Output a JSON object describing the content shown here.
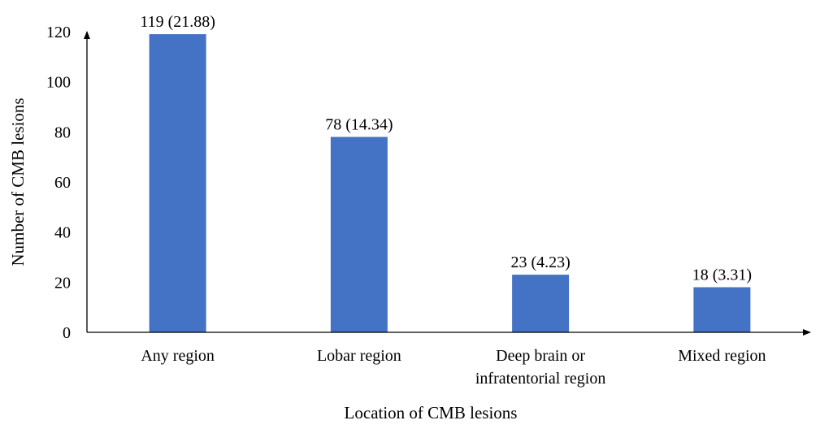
{
  "chart_data": {
    "type": "bar",
    "title": "",
    "xlabel": "Location of CMB lesions",
    "ylabel": "Number of CMB lesions",
    "ylim": [
      0,
      120
    ],
    "yticks": [
      0,
      20,
      40,
      60,
      80,
      100,
      120
    ],
    "grid": false,
    "categories": [
      [
        "Any region"
      ],
      [
        "Lobar region"
      ],
      [
        "Deep brain or",
        "infratentorial region"
      ],
      [
        "Mixed region"
      ]
    ],
    "values": [
      119,
      78,
      23,
      18
    ],
    "data_labels": [
      "119 (21.88)",
      "78 (14.34)",
      "23 (4.23)",
      "18 (3.31)"
    ],
    "colors": {
      "bar": "#4472C4",
      "axis": "#000000"
    }
  }
}
